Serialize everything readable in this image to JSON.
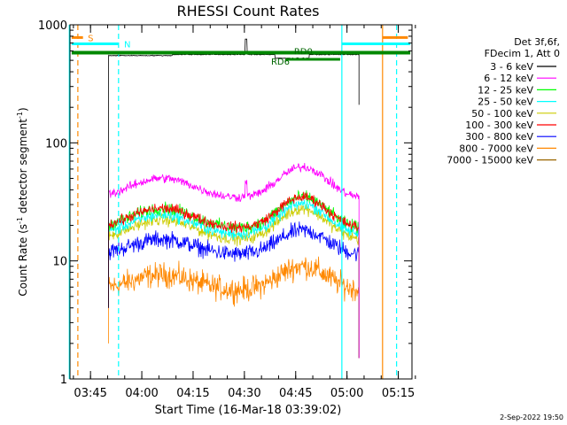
{
  "chart_data": {
    "type": "line",
    "title": "RHESSI Count Rates",
    "xlabel": "Start Time (16-Mar-18 03:39:02)",
    "ylabel_main": "Count Rate (s",
    "ylabel_sup1": "-1",
    "ylabel_mid": " detector segment",
    "ylabel_sup2": "-1",
    "ylabel_end": ")",
    "yscale": "log",
    "ylim": [
      1,
      1000
    ],
    "xlim_minutes": [
      0,
      100
    ],
    "x_ticks": [
      {
        "label": "03:45",
        "min": 6
      },
      {
        "label": "04:00",
        "min": 21
      },
      {
        "label": "04:15",
        "min": 36
      },
      {
        "label": "04:30",
        "min": 51
      },
      {
        "label": "04:45",
        "min": 66
      },
      {
        "label": "05:00",
        "min": 81
      },
      {
        "label": "05:15",
        "min": 96
      }
    ],
    "y_ticks": [
      {
        "label": "1",
        "value": 1
      },
      {
        "label": "10",
        "value": 10
      },
      {
        "label": "100",
        "value": 100
      },
      {
        "label": "1000",
        "value": 1000
      }
    ],
    "legend_header": [
      "Det 3f,6f,",
      "FDecim 1, Att 0"
    ],
    "series": [
      {
        "name": "3 - 6 keV",
        "color": "#000000",
        "base": 560
      },
      {
        "name": "6 - 12 keV",
        "color": "#ff00ff",
        "base": 45
      },
      {
        "name": "12 - 25 keV",
        "color": "#00ff00",
        "base": 25
      },
      {
        "name": "25 - 50 keV",
        "color": "#00ffff",
        "base": 22
      },
      {
        "name": "50 - 100 keV",
        "color": "#cccc00",
        "base": 20
      },
      {
        "name": "100 - 300 keV",
        "color": "#ff0000",
        "base": 25
      },
      {
        "name": "300 - 800 keV",
        "color": "#0000ff",
        "base": 14
      },
      {
        "name": "800 - 7000 keV",
        "color": "#ff8800",
        "base": 7
      },
      {
        "name": "7000 - 15000 keV",
        "color": "#996600",
        "base": 0
      }
    ],
    "data_interval_minutes": [
      11.3,
      84.5
    ],
    "annotations": [
      {
        "label": "S",
        "color": "#ff8800"
      },
      {
        "label": "N",
        "color": "#00ffff"
      },
      {
        "label": "RD0",
        "color": "#006600"
      },
      {
        "label": "RD6",
        "color": "#006600"
      }
    ],
    "footer_date": "2-Sep-2022 19:50"
  }
}
